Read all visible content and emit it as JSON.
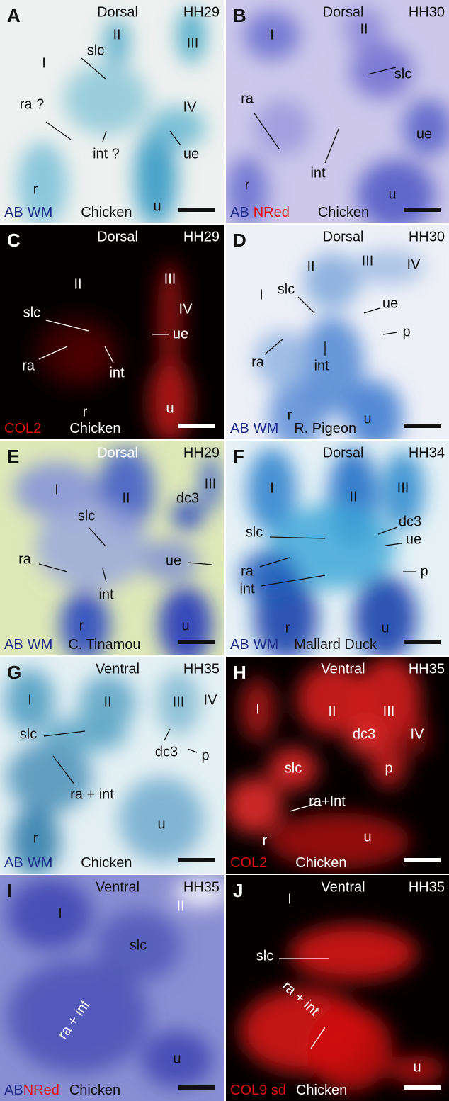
{
  "panels": [
    {
      "letter": "A",
      "view": "Dorsal",
      "stage": "HH29",
      "stain": [
        {
          "text": "AB",
          "color": "#1e2a8a"
        },
        {
          "text": "WM",
          "color": "#1e2a8a"
        }
      ],
      "species": "Chicken",
      "labels": [
        "II",
        "III",
        "I",
        "slc",
        "ra ?",
        "IV",
        "ue",
        "int ?",
        "r",
        "u"
      ]
    },
    {
      "letter": "B",
      "view": "Dorsal",
      "stage": "HH30",
      "stain": [
        {
          "text": "AB",
          "color": "#1e2a8a"
        },
        {
          "text": "NRed",
          "color": "#e01010"
        }
      ],
      "species": "Chicken",
      "labels": [
        "I",
        "II",
        "slc",
        "ra",
        "ue",
        "int",
        "r",
        "u"
      ]
    },
    {
      "letter": "C",
      "view": "Dorsal",
      "stage": "HH29",
      "stain": [
        {
          "text": "COL2",
          "color": "#e01010"
        }
      ],
      "species": "Chicken",
      "labels": [
        "III",
        "II",
        "IV",
        "slc",
        "ue",
        "ra",
        "int",
        "r",
        "u"
      ]
    },
    {
      "letter": "D",
      "view": "Dorsal",
      "stage": "HH30",
      "stain": [
        {
          "text": "AB",
          "color": "#1e2a8a"
        },
        {
          "text": "WM",
          "color": "#1e2a8a"
        }
      ],
      "species": "R. Pigeon",
      "labels": [
        "II",
        "III",
        "IV",
        "slc",
        "I",
        "ue",
        "p",
        "ra",
        "int",
        "r",
        "u"
      ]
    },
    {
      "letter": "E",
      "view": "Dorsal",
      "stage": "HH29",
      "stain": [
        {
          "text": "AB",
          "color": "#1e2a8a"
        },
        {
          "text": "WM",
          "color": "#1e2a8a"
        }
      ],
      "species": "C. Tinamou",
      "labels": [
        "I",
        "II",
        "dc3",
        "III",
        "slc",
        "ra",
        "ue",
        "int",
        "r",
        "u"
      ]
    },
    {
      "letter": "F",
      "view": "Dorsal",
      "stage": "HH34",
      "stain": [
        {
          "text": "AB",
          "color": "#1e2a8a"
        },
        {
          "text": "WM",
          "color": "#1e2a8a"
        }
      ],
      "species": "Mallard Duck",
      "labels": [
        "I",
        "II",
        "III",
        "slc",
        "dc3",
        "ue",
        "ra",
        "p",
        "int",
        "r",
        "u"
      ]
    },
    {
      "letter": "G",
      "view": "Ventral",
      "stage": "HH35",
      "stain": [
        {
          "text": "AB",
          "color": "#1e2a8a"
        },
        {
          "text": "WM",
          "color": "#1e2a8a"
        }
      ],
      "species": "Chicken",
      "labels": [
        "IV",
        "I",
        "II",
        "III",
        "slc",
        "dc3",
        "p",
        "ra + int",
        "r",
        "u"
      ]
    },
    {
      "letter": "H",
      "view": "Ventral",
      "stage": "HH35",
      "stain": [
        {
          "text": "COL2",
          "color": "#e01010"
        }
      ],
      "species": "Chicken",
      "labels": [
        "I",
        "II",
        "III",
        "IV",
        "dc3",
        "slc",
        "p",
        "ra+Int",
        "r",
        "u"
      ]
    },
    {
      "letter": "I",
      "view": "Ventral",
      "stage": "HH35",
      "stain": [
        {
          "text": "AB",
          "color": "#1e2a8a"
        },
        {
          "text": "NRed",
          "color": "#e01010"
        }
      ],
      "species": "Chicken",
      "labels": [
        "I",
        "II",
        "slc",
        "ra + int",
        "u"
      ]
    },
    {
      "letter": "J",
      "view": "Ventral",
      "stage": "HH35",
      "stain": [
        {
          "text": "COL9 sd",
          "color": "#e01010"
        }
      ],
      "species": "Chicken",
      "labels": [
        "I",
        "slc",
        "ra + int",
        "u"
      ]
    }
  ]
}
